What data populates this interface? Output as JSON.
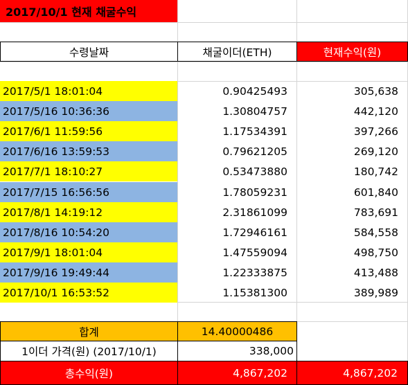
{
  "title": "2017/10/1 현재 채굴수익",
  "headers": {
    "date": "수령날짜",
    "eth": "채굴이더(ETH)",
    "krw": "현재수익(원)"
  },
  "rows": [
    {
      "date": "2017/5/1 18:01:04",
      "eth": "0.90425493",
      "krw": "305,638"
    },
    {
      "date": "2017/5/16 10:36:36",
      "eth": "1.30804757",
      "krw": "442,120"
    },
    {
      "date": "2017/6/1 11:59:56",
      "eth": "1.17534391",
      "krw": "397,266"
    },
    {
      "date": "2017/6/16 13:59:53",
      "eth": "0.79621205",
      "krw": "269,120"
    },
    {
      "date": "2017/7/1 18:10:27",
      "eth": "0.53473880",
      "krw": "180,742"
    },
    {
      "date": "2017/7/15 16:56:56",
      "eth": "1.78059231",
      "krw": "601,840"
    },
    {
      "date": "2017/8/1 14:19:12",
      "eth": "2.31861099",
      "krw": "783,691"
    },
    {
      "date": "2017/8/16 10:54:20",
      "eth": "1.72946161",
      "krw": "584,558"
    },
    {
      "date": "2017/9/1 18:01:04",
      "eth": "1.47559094",
      "krw": "498,750"
    },
    {
      "date": "2017/9/16 19:49:44",
      "eth": "1.22333875",
      "krw": "413,488"
    },
    {
      "date": "2017/10/1 16:53:52",
      "eth": "1.15381300",
      "krw": "389,989"
    }
  ],
  "summary": {
    "total_label": "합계",
    "total_eth": "14.40000486",
    "price_label": "1이더 가격(원) (2017/10/1)",
    "price_value": "338,000",
    "revenue_label": "총수익(원)",
    "revenue_value": "4,867,202",
    "revenue_value_right": "4,867,202"
  },
  "colors": {
    "yellow": "#ffff00",
    "blue": "#8db4e2",
    "orange": "#ffc000",
    "red": "#ff0000"
  }
}
